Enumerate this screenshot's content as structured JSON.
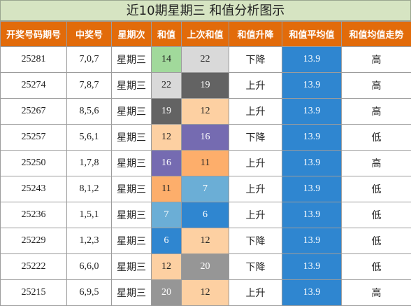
{
  "title": "近10期星期三 和值分析图示",
  "headers": [
    "开奖号码期号",
    "中奖号",
    "星期次",
    "和值",
    "上次和值",
    "和值升降",
    "和值平均值",
    "和值均值走势"
  ],
  "colors": {
    "header_bg": "#e26b0a",
    "title_bg": "#d6e4c2",
    "avg_bg": "#2f86d0",
    "sum_palette": {
      "6": "#2f86d0",
      "7": "#6baed6",
      "11": "#fdae6b",
      "12": "#fdd0a2",
      "14": "#a1d99b",
      "16": "#756bb1",
      "19": "#636363",
      "20": "#969696",
      "22": "#d9d9d9"
    },
    "sum_text_light": [
      "6",
      "7",
      "16",
      "19",
      "20"
    ]
  },
  "rows": [
    {
      "draw": "25281",
      "winning": "7,0,7",
      "weekday": "星期三",
      "sum": "14",
      "prev_sum": "22",
      "direction": "下降",
      "avg": "13.9",
      "trend": "高"
    },
    {
      "draw": "25274",
      "winning": "7,8,7",
      "weekday": "星期三",
      "sum": "22",
      "prev_sum": "19",
      "direction": "上升",
      "avg": "13.9",
      "trend": "高"
    },
    {
      "draw": "25267",
      "winning": "8,5,6",
      "weekday": "星期三",
      "sum": "19",
      "prev_sum": "12",
      "direction": "上升",
      "avg": "13.9",
      "trend": "高"
    },
    {
      "draw": "25257",
      "winning": "5,6,1",
      "weekday": "星期三",
      "sum": "12",
      "prev_sum": "16",
      "direction": "下降",
      "avg": "13.9",
      "trend": "低"
    },
    {
      "draw": "25250",
      "winning": "1,7,8",
      "weekday": "星期三",
      "sum": "16",
      "prev_sum": "11",
      "direction": "上升",
      "avg": "13.9",
      "trend": "高"
    },
    {
      "draw": "25243",
      "winning": "8,1,2",
      "weekday": "星期三",
      "sum": "11",
      "prev_sum": "7",
      "direction": "上升",
      "avg": "13.9",
      "trend": "低"
    },
    {
      "draw": "25236",
      "winning": "1,5,1",
      "weekday": "星期三",
      "sum": "7",
      "prev_sum": "6",
      "direction": "上升",
      "avg": "13.9",
      "trend": "低"
    },
    {
      "draw": "25229",
      "winning": "1,2,3",
      "weekday": "星期三",
      "sum": "6",
      "prev_sum": "12",
      "direction": "下降",
      "avg": "13.9",
      "trend": "低"
    },
    {
      "draw": "25222",
      "winning": "6,6,0",
      "weekday": "星期三",
      "sum": "12",
      "prev_sum": "20",
      "direction": "下降",
      "avg": "13.9",
      "trend": "低"
    },
    {
      "draw": "25215",
      "winning": "6,9,5",
      "weekday": "星期三",
      "sum": "20",
      "prev_sum": "12",
      "direction": "上升",
      "avg": "13.9",
      "trend": "高"
    }
  ]
}
